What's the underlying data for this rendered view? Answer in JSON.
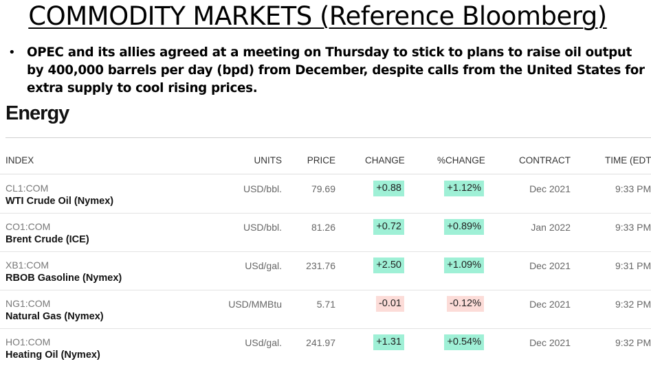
{
  "slide": {
    "title": "COMMODITY MARKETS (Reference Bloomberg)",
    "bullet_marker": "•",
    "bullet": "OPEC and its allies agreed at a meeting on Thursday to stick to plans to raise oil output by 400,000 barrels per day (bpd) from December, despite calls from the United States for extra supply to cool rising prices."
  },
  "energy": {
    "section_title": "Energy",
    "headers": {
      "index": "INDEX",
      "units": "UNITS",
      "price": "PRICE",
      "change": "CHANGE",
      "pct_change": "%CHANGE",
      "contract": "CONTRACT",
      "time": "TIME (EDT)"
    },
    "rows": [
      {
        "ticker": "CL1:COM",
        "name": "WTI Crude Oil (Nymex)",
        "units": "USD/bbl.",
        "price": "79.69",
        "change": "+0.88",
        "pct_change": "+1.12%",
        "contract": "Dec 2021",
        "time": "9:33 PM",
        "direction": "up"
      },
      {
        "ticker": "CO1:COM",
        "name": "Brent Crude (ICE)",
        "units": "USD/bbl.",
        "price": "81.26",
        "change": "+0.72",
        "pct_change": "+0.89%",
        "contract": "Jan 2022",
        "time": "9:33 PM",
        "direction": "up"
      },
      {
        "ticker": "XB1:COM",
        "name": "RBOB Gasoline (Nymex)",
        "units": "USd/gal.",
        "price": "231.76",
        "change": "+2.50",
        "pct_change": "+1.09%",
        "contract": "Dec 2021",
        "time": "9:31 PM",
        "direction": "up"
      },
      {
        "ticker": "NG1:COM",
        "name": "Natural Gas (Nymex)",
        "units": "USD/MMBtu",
        "price": "5.71",
        "change": "-0.01",
        "pct_change": "-0.12%",
        "contract": "Dec 2021",
        "time": "9:32 PM",
        "direction": "down"
      },
      {
        "ticker": "HO1:COM",
        "name": "Heating Oil (Nymex)",
        "units": "USd/gal.",
        "price": "241.97",
        "change": "+1.31",
        "pct_change": "+0.54%",
        "contract": "Dec 2021",
        "time": "9:32 PM",
        "direction": "up"
      }
    ],
    "colors": {
      "positive_bg": "#9ff0d6",
      "negative_bg": "#fcdcd8"
    }
  }
}
